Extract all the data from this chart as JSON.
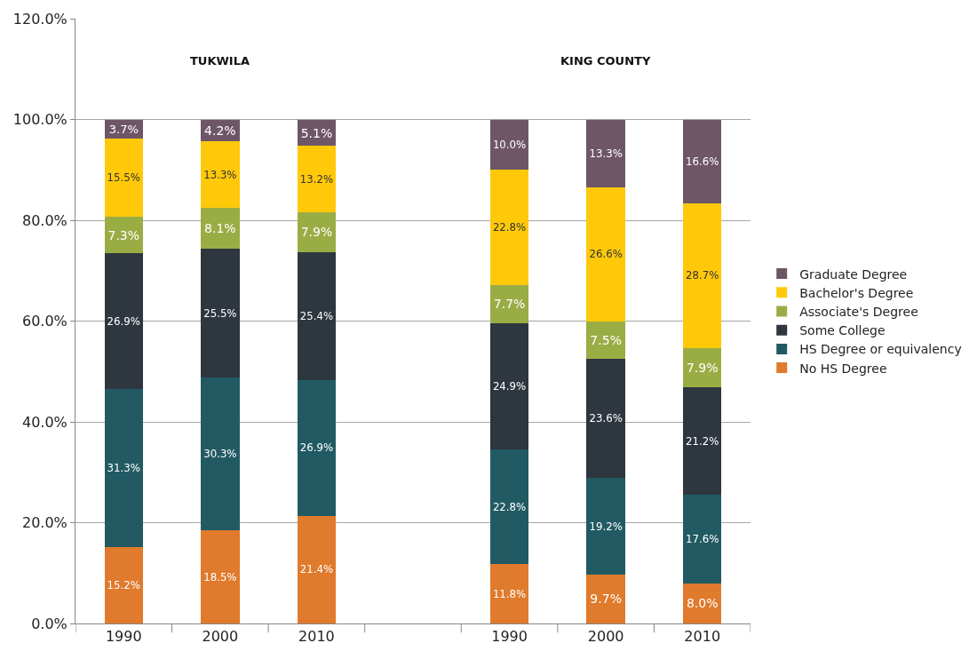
{
  "chart_data": {
    "type": "bar",
    "stacked": true,
    "categories": [
      "1990",
      "2000",
      "2010",
      null,
      "1990",
      "2000",
      "2010"
    ],
    "annotations": [
      "TUKWILA",
      "KING COUNTY"
    ],
    "ylim": [
      0,
      120
    ],
    "yticks": [
      {
        "value": 0,
        "label": "0.0%"
      },
      {
        "value": 20,
        "label": "20.0%"
      },
      {
        "value": 40,
        "label": "40.0%"
      },
      {
        "value": 60,
        "label": "60.0%"
      },
      {
        "value": 80,
        "label": "80.0%"
      },
      {
        "value": 100,
        "label": "100.0%"
      },
      {
        "value": 120,
        "label": "120.0%"
      }
    ],
    "grid": "y",
    "legend": "right",
    "series": [
      {
        "name": "No HS Degree",
        "color": "#e07a2c",
        "values": [
          15.2,
          18.5,
          21.4,
          null,
          11.8,
          9.7,
          8.0
        ],
        "value_labels": [
          "15.2%",
          "18.5%",
          "21.4%",
          null,
          "11.8%",
          "9.7%",
          "8.0%"
        ]
      },
      {
        "name": "HS Degree or equivalency",
        "color": "#225a63",
        "values": [
          31.3,
          30.3,
          26.9,
          null,
          22.8,
          19.2,
          17.6
        ],
        "value_labels": [
          "31.3%",
          "30.3%",
          "26.9%",
          null,
          "22.8%",
          "19.2%",
          "17.6%"
        ]
      },
      {
        "name": "Some College",
        "color": "#2e363f",
        "values": [
          26.9,
          25.5,
          25.4,
          null,
          24.9,
          23.6,
          21.2
        ],
        "value_labels": [
          "26.9%",
          "25.5%",
          "25.4%",
          null,
          "24.9%",
          "23.6%",
          "21.2%"
        ]
      },
      {
        "name": "Associate's Degree",
        "color": "#9aad45",
        "values": [
          7.3,
          8.1,
          7.9,
          null,
          7.7,
          7.5,
          7.9
        ],
        "value_labels": [
          "7.3%",
          "8.1%",
          "7.9%",
          null,
          "7.7%",
          "7.5%",
          "7.9%"
        ]
      },
      {
        "name": "Bachelor's Degree",
        "color": "#ffc90a",
        "values": [
          15.5,
          13.3,
          13.2,
          null,
          22.8,
          26.6,
          28.7
        ],
        "value_labels": [
          "15.5%",
          "13.3%",
          "13.2%",
          null,
          "22.8%",
          "26.6%",
          "28.7%"
        ]
      },
      {
        "name": "Graduate Degree",
        "color": "#6e5667",
        "values": [
          3.7,
          4.2,
          5.1,
          null,
          10.0,
          13.3,
          16.6
        ],
        "value_labels": [
          "3.7%",
          "4.2%",
          "5.1%",
          null,
          "10.0%",
          "13.3%",
          "16.6%"
        ]
      }
    ]
  }
}
